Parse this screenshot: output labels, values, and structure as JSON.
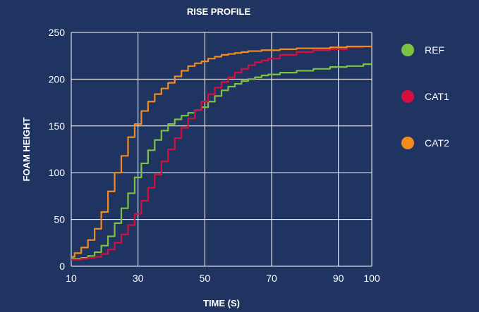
{
  "chart_data": {
    "type": "line",
    "title": "RISE PROFILE",
    "xlabel": "TIME (S)",
    "ylabel": "FOAM HEIGHT",
    "xlim": [
      10,
      100
    ],
    "ylim": [
      0,
      250
    ],
    "xticks": [
      10,
      30,
      50,
      70,
      90,
      100
    ],
    "yticks": [
      0,
      50,
      100,
      150,
      200,
      250
    ],
    "grid": true,
    "legend_position": "right",
    "colors": {
      "background": "#203461",
      "grid": "#ffffff",
      "text": "#ffffff"
    },
    "series": [
      {
        "name": "REF",
        "color": "#7dc242",
        "x": [
          10,
          12,
          14,
          16,
          18,
          20,
          22,
          24,
          26,
          28,
          30,
          32,
          34,
          36,
          38,
          40,
          42,
          44,
          46,
          48,
          50,
          52,
          54,
          56,
          58,
          60,
          62,
          64,
          66,
          68,
          70,
          75,
          80,
          85,
          90,
          95,
          100
        ],
        "y": [
          8,
          8,
          9,
          11,
          15,
          22,
          32,
          46,
          62,
          78,
          95,
          110,
          124,
          135,
          145,
          152,
          157,
          161,
          164,
          167,
          170,
          176,
          182,
          188,
          192,
          195,
          198,
          200,
          202,
          204,
          205,
          207,
          209,
          211,
          213,
          214,
          216
        ]
      },
      {
        "name": "CAT1",
        "color": "#d5103f",
        "x": [
          10,
          12,
          14,
          16,
          18,
          20,
          22,
          24,
          26,
          28,
          30,
          32,
          34,
          36,
          38,
          40,
          42,
          44,
          46,
          48,
          50,
          52,
          54,
          56,
          58,
          60,
          62,
          64,
          66,
          68,
          70,
          75,
          80,
          85,
          90,
          95,
          100
        ],
        "y": [
          7,
          7,
          8,
          9,
          10,
          13,
          18,
          25,
          34,
          44,
          56,
          70,
          84,
          98,
          112,
          125,
          137,
          148,
          158,
          167,
          176,
          184,
          191,
          197,
          202,
          207,
          211,
          215,
          218,
          220,
          222,
          226,
          229,
          231,
          232,
          234,
          235
        ]
      },
      {
        "name": "CAT2",
        "color": "#f28c1e",
        "x": [
          10,
          12,
          14,
          16,
          18,
          20,
          22,
          24,
          26,
          28,
          30,
          32,
          34,
          36,
          38,
          40,
          42,
          44,
          46,
          48,
          50,
          52,
          54,
          56,
          58,
          60,
          62,
          64,
          66,
          68,
          70,
          75,
          80,
          85,
          90,
          95,
          100
        ],
        "y": [
          10,
          14,
          20,
          28,
          40,
          58,
          80,
          100,
          118,
          138,
          152,
          166,
          176,
          184,
          190,
          196,
          203,
          209,
          214,
          217,
          219,
          222,
          224,
          226,
          227,
          228,
          229,
          230,
          230,
          231,
          231,
          232,
          233,
          233,
          234,
          235,
          235
        ]
      }
    ]
  }
}
